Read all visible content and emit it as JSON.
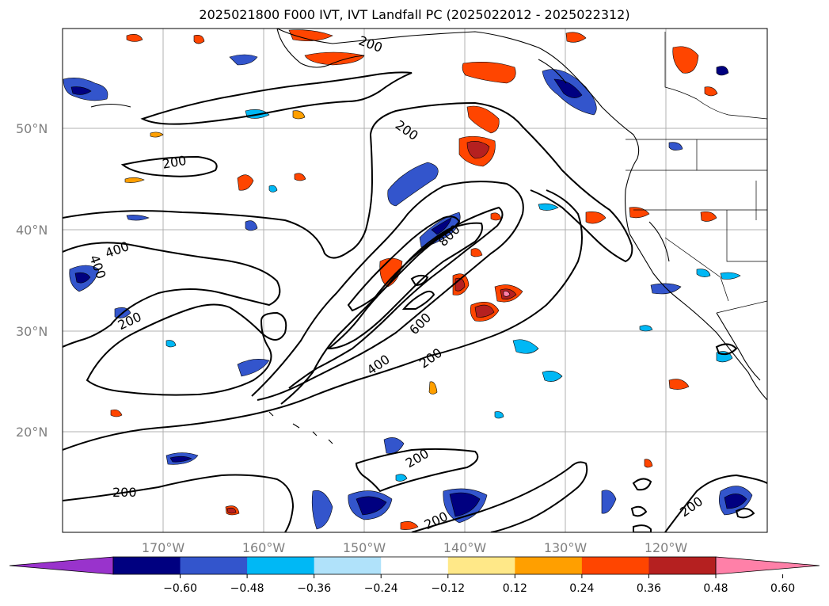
{
  "title": "2025021800 F000 IVT, IVT Landfall PC (2025022012 - 2025022312)",
  "map": {
    "lat_labels": [
      "50°N",
      "40°N",
      "30°N",
      "20°N"
    ],
    "lon_labels": [
      "170°W",
      "160°W",
      "150°W",
      "140°W",
      "130°W",
      "120°W"
    ],
    "contour_labels": [
      "200",
      "200",
      "200",
      "400",
      "200",
      "800",
      "600",
      "200",
      "400",
      "200",
      "200",
      "200",
      "200",
      "200",
      "200"
    ],
    "gridlines": true
  },
  "colorbar": {
    "ticks": [
      "−0.60",
      "−0.48",
      "−0.36",
      "−0.24",
      "−0.12",
      "0.12",
      "0.24",
      "0.36",
      "0.48",
      "0.60"
    ],
    "colors": [
      "#9933cc",
      "#000080",
      "#3355cc",
      "#00b8f5",
      "#b0e2fa",
      "#ffffff",
      "#ffe888",
      "#ff9f00",
      "#ff4500",
      "#b52020",
      "#ff80a8"
    ]
  }
}
